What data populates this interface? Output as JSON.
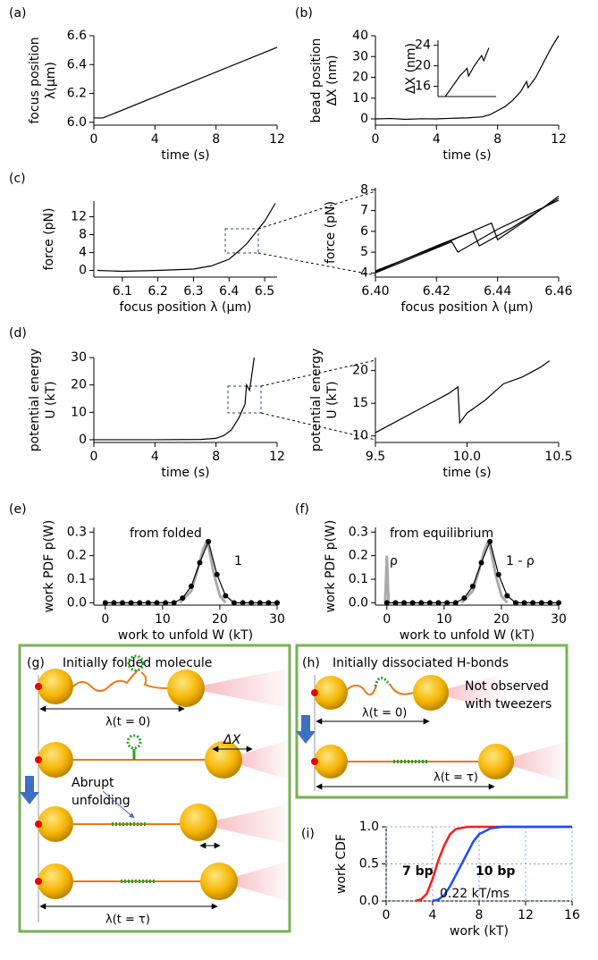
{
  "chart_data": [
    {
      "type": "line",
      "panel": "(a)",
      "xlabel": "time (s)",
      "ylabel": [
        "focus position",
        "λ(µm)"
      ],
      "xlim": [
        0,
        12
      ],
      "xticks": [
        0,
        4,
        8,
        12
      ],
      "ylim": [
        5.98,
        6.6
      ],
      "yticks": [
        {
          "value": 6,
          "label": "6.0"
        },
        6.2,
        6.4,
        6.6
      ],
      "series": [
        {
          "color": "#000000",
          "x": [
            0,
            0.6,
            12
          ],
          "values": [
            6.03,
            6.03,
            6.52
          ]
        }
      ]
    },
    {
      "type": "line",
      "panel": "(b)",
      "xlabel": "time (s)",
      "ylabel": [
        "bead position",
        "ΔX (nm)"
      ],
      "xlim": [
        0,
        12
      ],
      "xticks": [
        0,
        4,
        8,
        12
      ],
      "ylim": [
        -3,
        40
      ],
      "yticks": [
        0,
        10,
        20,
        30,
        40
      ],
      "series": [
        {
          "color": "#000000",
          "x": [
            0,
            1,
            2,
            3,
            4,
            5,
            6,
            7,
            7.5,
            8,
            8.5,
            9,
            9.5,
            9.9,
            10,
            10.1,
            10.5,
            11,
            11.5,
            12
          ],
          "values": [
            0,
            0.2,
            -0.2,
            0.1,
            0,
            0.3,
            0.5,
            1,
            2,
            4,
            6,
            9,
            13,
            18,
            15,
            16,
            20,
            27,
            34,
            40
          ]
        }
      ]
    },
    {
      "type": "line",
      "ylabel": "ΔX (nm)",
      "xlim": [
        -1,
        7
      ],
      "ylim": [
        14,
        25
      ],
      "yticks": [
        16,
        20,
        24
      ],
      "series": [
        {
          "color": "#000000",
          "x": [
            0,
            1,
            2,
            3,
            3.2,
            4,
            5,
            5.3,
            6
          ],
          "values": [
            14,
            16,
            18,
            19.5,
            18,
            20,
            22,
            21,
            23.5
          ]
        }
      ]
    },
    {
      "type": "line",
      "panel": "(c)",
      "xlabel": "focus position λ (µm)",
      "ylabel": "force (pN)",
      "xlim": [
        6.02,
        6.535
      ],
      "xticks": [
        6.1,
        6.2,
        6.3,
        6.4,
        6.5
      ],
      "ylim": [
        -1.5,
        15.5
      ],
      "yticks": [
        0,
        4,
        8,
        12
      ],
      "series": [
        {
          "color": "#000000",
          "x": [
            6.03,
            6.1,
            6.2,
            6.3,
            6.35,
            6.4,
            6.43,
            6.45,
            6.47,
            6.5,
            6.53
          ],
          "values": [
            0,
            -0.2,
            0,
            0.3,
            1,
            2.5,
            4.5,
            6,
            8,
            11,
            15
          ]
        }
      ]
    },
    {
      "type": "line",
      "xlabel": "focus position λ (µm)",
      "ylabel": "force (pN)",
      "xlim": [
        6.4,
        6.46
      ],
      "xticks": [
        {
          "value": 6.4,
          "label": "6.40"
        },
        6.42,
        6.44,
        6.46
      ],
      "ylim": [
        3.8,
        8.1
      ],
      "yticks": [
        4,
        5,
        6,
        7,
        8
      ],
      "series": [
        {
          "color": "#000000",
          "x": [
            6.4,
            6.42,
            6.425,
            6.427,
            6.44,
            6.46
          ],
          "values": [
            4,
            5.2,
            5.5,
            5.0,
            6.1,
            7.5
          ]
        },
        {
          "color": "#000000",
          "x": [
            6.4,
            6.42,
            6.432,
            6.434,
            6.445,
            6.46
          ],
          "values": [
            4.05,
            5.3,
            6.0,
            5.3,
            6.2,
            7.6
          ]
        },
        {
          "color": "#000000",
          "x": [
            6.4,
            6.42,
            6.438,
            6.44,
            6.45,
            6.46
          ],
          "values": [
            4.1,
            5.25,
            6.4,
            5.6,
            6.6,
            7.7
          ]
        }
      ]
    },
    {
      "type": "line",
      "panel": "(d)",
      "xlabel": "time (s)",
      "ylabel": [
        "potential energy",
        "U (kT)"
      ],
      "xlim": [
        0,
        12
      ],
      "xticks": [
        0,
        4,
        8,
        12
      ],
      "ylim": [
        -1,
        30
      ],
      "yticks": [
        0,
        10,
        20,
        30
      ],
      "series": [
        {
          "color": "#000000",
          "x": [
            0,
            4,
            7,
            8,
            8.5,
            9,
            9.5,
            9.9,
            10,
            10.2,
            10.5
          ],
          "values": [
            0,
            0,
            0.1,
            0.5,
            1.5,
            3.5,
            8,
            13,
            20,
            18,
            30
          ]
        }
      ]
    },
    {
      "type": "line",
      "xlabel": "time (s)",
      "ylabel": [
        "potential energy",
        "U (kT)"
      ],
      "xlim": [
        9.5,
        10.5
      ],
      "xticks": [
        9.5,
        {
          "value": 10,
          "label": "10.0"
        },
        10.5
      ],
      "ylim": [
        9,
        22
      ],
      "yticks": [
        10,
        15,
        20
      ],
      "series": [
        {
          "color": "#000000",
          "x": [
            9.5,
            9.6,
            9.7,
            9.8,
            9.9,
            9.95,
            9.96,
            10.0,
            10.1,
            10.2,
            10.3,
            10.4,
            10.45
          ],
          "values": [
            10.5,
            12,
            13.5,
            15,
            16.5,
            17.5,
            12,
            13.5,
            15.5,
            18,
            19,
            20.5,
            21.5
          ]
        }
      ]
    },
    {
      "type": "line",
      "panel": "(e)",
      "xlabel": "work to unfold W (kT)",
      "ylabel": "work PDF p(W)",
      "annotations": [
        "from folded",
        "1"
      ],
      "xlim": [
        -2,
        30
      ],
      "xticks": [
        0,
        10,
        20,
        30
      ],
      "ylim": [
        -0.01,
        0.32
      ],
      "yticks": [
        {
          "value": 0,
          "label": "0.0"
        },
        0.1,
        0.2,
        0.3
      ],
      "series": [
        {
          "color": "#aaaaaa",
          "x": [
            13,
            15,
            16,
            17,
            17.5,
            18,
            19,
            20,
            21
          ],
          "values": [
            0,
            0.05,
            0.13,
            0.22,
            0.25,
            0.24,
            0.12,
            0.03,
            0
          ]
        },
        {
          "color": "#000000",
          "marker": true,
          "x": [
            0,
            1.5,
            3,
            4.5,
            6,
            7.5,
            9,
            10.5,
            12,
            13.5,
            15,
            16.5,
            18,
            19.5,
            21,
            22.5,
            24,
            25.5,
            27,
            28.5,
            30
          ],
          "values": [
            0,
            0,
            0,
            0,
            0,
            0,
            0,
            0,
            0,
            0.02,
            0.07,
            0.17,
            0.26,
            0.12,
            0.03,
            0,
            0,
            0,
            0,
            0,
            0
          ]
        }
      ]
    },
    {
      "type": "line",
      "panel": "(f)",
      "xlabel": "work to unfold W (kT)",
      "ylabel": "work PDF p(W)",
      "annotations": [
        "from equilibrium",
        "ρ",
        "1 - ρ"
      ],
      "xlim": [
        -2,
        30
      ],
      "xticks": [
        0,
        10,
        20,
        30
      ],
      "ylim": [
        -0.01,
        0.32
      ],
      "yticks": [
        {
          "value": 0,
          "label": "0.0"
        },
        0.1,
        0.2,
        0.3
      ],
      "series": [
        {
          "color": "#aaaaaa",
          "x": [
            -0.3,
            0,
            0.3
          ],
          "values": [
            0,
            0.2,
            0
          ]
        },
        {
          "color": "#aaaaaa",
          "x": [
            13,
            15,
            16,
            17,
            17.5,
            18,
            19,
            20,
            21
          ],
          "values": [
            0,
            0.05,
            0.13,
            0.22,
            0.25,
            0.24,
            0.12,
            0.03,
            0
          ]
        },
        {
          "color": "#000000",
          "marker": true,
          "x": [
            0,
            1.5,
            3,
            4.5,
            6,
            7.5,
            9,
            10.5,
            12,
            13.5,
            15,
            16.5,
            18,
            19.5,
            21,
            22.5,
            24,
            25.5,
            27,
            28.5,
            30
          ],
          "values": [
            0,
            0,
            0,
            0,
            0,
            0,
            0,
            0,
            0,
            0.02,
            0.07,
            0.17,
            0.26,
            0.12,
            0.03,
            0,
            0,
            0,
            0,
            0,
            0
          ]
        }
      ]
    },
    {
      "type": "line",
      "panel": "(i)",
      "xlabel": "work (kT)",
      "ylabel": "work CDF",
      "annotations": [
        "0.22 kT/ms"
      ],
      "grid": true,
      "xlim": [
        0,
        16
      ],
      "xticks": [
        0,
        4,
        8,
        12,
        16
      ],
      "ylim": [
        0,
        1
      ],
      "yticks": [
        {
          "value": 0,
          "label": "0.0"
        },
        0.5,
        {
          "value": 1,
          "label": "1.0"
        }
      ],
      "series": [
        {
          "name": "7 bp",
          "color": "#ff1a1a",
          "x": [
            2.5,
            3,
            3.5,
            4,
            4.5,
            5,
            5.5,
            6,
            7,
            16
          ],
          "values": [
            0,
            0.02,
            0.1,
            0.3,
            0.55,
            0.75,
            0.9,
            0.97,
            1,
            1
          ]
        },
        {
          "name": "10 bp",
          "color": "#1a4dff",
          "x": [
            4,
            4.5,
            5,
            5.5,
            6,
            6.5,
            7,
            7.5,
            8,
            9,
            10,
            16
          ],
          "values": [
            0,
            0.02,
            0.08,
            0.2,
            0.35,
            0.5,
            0.65,
            0.8,
            0.9,
            0.98,
            1,
            1
          ]
        }
      ]
    }
  ],
  "diagrams": {
    "g": {
      "panel": "(g)",
      "title": "Initially folded molecule",
      "start": "λ(t = 0)",
      "dx": "ΔX",
      "note": [
        "Abrupt",
        "unfolding"
      ],
      "end": "λ(t = τ)"
    },
    "h": {
      "panel": "(h)",
      "title": "Initially dissociated H-bonds",
      "start": "λ(t = 0)",
      "note": [
        "Not observed",
        "with tweezers"
      ],
      "end": "λ(t = τ)"
    }
  }
}
